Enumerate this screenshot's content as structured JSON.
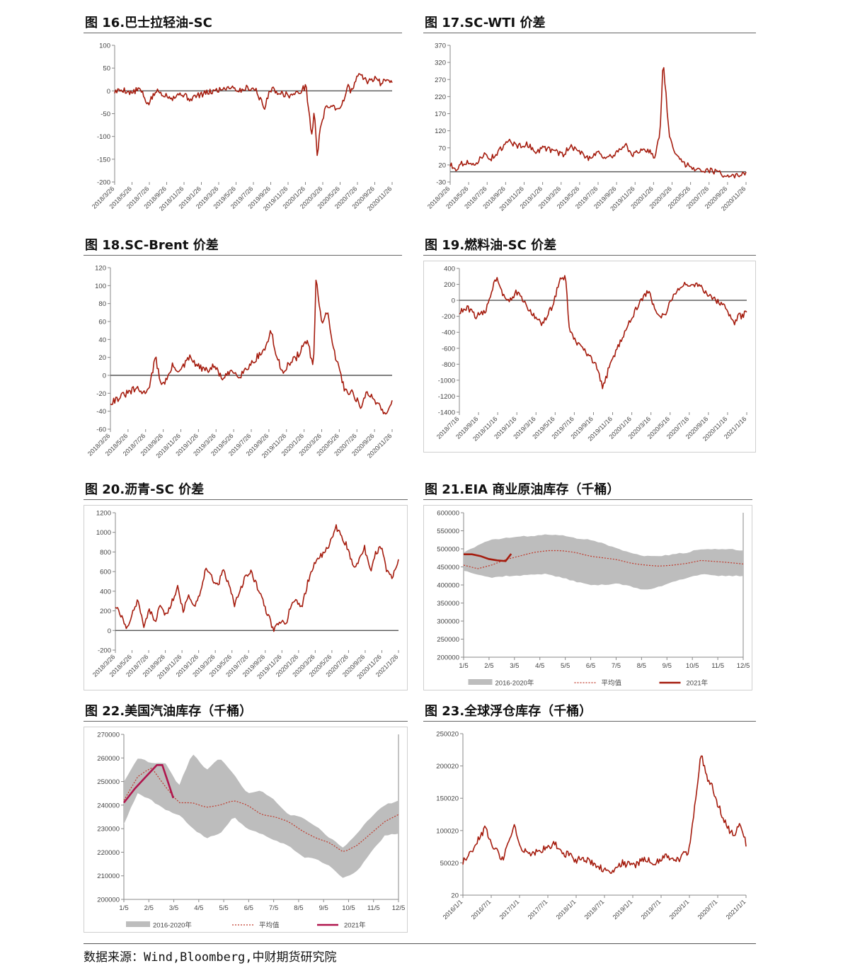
{
  "footer": {
    "source": "数据来源：Wind,Bloomberg,中财期货研究院"
  },
  "panels": [
    {
      "id": "p16",
      "title": "图 16.巴士拉轻油-SC",
      "box": [
        118,
        20,
        450,
        295
      ],
      "framed": false
    },
    {
      "id": "p17",
      "title": "图 17.SC-WTI 价差",
      "box": [
        598,
        20,
        470,
        295
      ],
      "framed": false
    },
    {
      "id": "p18",
      "title": "图 18.SC-Brent 价差",
      "box": [
        118,
        334,
        450,
        330
      ],
      "framed": false
    },
    {
      "id": "p19",
      "title": "图 19.燃料油-SC 价差",
      "box": [
        598,
        334,
        470,
        305
      ],
      "framed": true
    },
    {
      "id": "p20",
      "title": "图 20.沥青-SC 价差",
      "box": [
        118,
        679,
        458,
        296
      ],
      "framed": true
    },
    {
      "id": "p21",
      "title": "图 21.EIA 商业原油库存（千桶）",
      "box": [
        598,
        679,
        465,
        296
      ],
      "framed": true
    },
    {
      "id": "p22",
      "title": "图 22.美国汽油库存（千桶）",
      "box": [
        118,
        992,
        458,
        325
      ],
      "framed": true
    },
    {
      "id": "p23",
      "title": "图 23.全球浮仓库存（千桶）",
      "box": [
        598,
        992,
        470,
        330
      ],
      "framed": false
    }
  ],
  "chart_data": [
    {
      "panel": "p16",
      "type": "line",
      "color": "#a51c0e",
      "ylim": [
        -200,
        100
      ],
      "yticks": [
        100,
        50,
        0,
        -50,
        -100,
        -150,
        -200
      ],
      "xticks": [
        "2018/3/26",
        "2018/5/26",
        "2018/7/26",
        "2018/9/26",
        "2018/11/26",
        "2019/1/26",
        "2019/3/26",
        "2019/5/26",
        "2019/7/26",
        "2019/9/26",
        "2019/11/26",
        "2020/1/26",
        "2020/3/26",
        "2020/5/26",
        "2020/7/26",
        "2020/9/26",
        "2020/11/26"
      ],
      "x": [
        0,
        0.03,
        0.06,
        0.09,
        0.12,
        0.15,
        0.18,
        0.21,
        0.24,
        0.27,
        0.3,
        0.33,
        0.36,
        0.39,
        0.42,
        0.45,
        0.48,
        0.51,
        0.54,
        0.56,
        0.58,
        0.6,
        0.63,
        0.66,
        0.69,
        0.71,
        0.72,
        0.73,
        0.74,
        0.75,
        0.76,
        0.78,
        0.8,
        0.82,
        0.83,
        0.84,
        0.85,
        0.86,
        0.88,
        0.9,
        0.92,
        0.94,
        0.96,
        0.98,
        1.0
      ],
      "values": [
        -2,
        3,
        -5,
        5,
        -30,
        0,
        -8,
        -15,
        -5,
        -18,
        -10,
        -5,
        0,
        5,
        10,
        0,
        8,
        2,
        -40,
        5,
        0,
        -5,
        -10,
        -5,
        10,
        -100,
        -40,
        -150,
        -80,
        -60,
        -40,
        -30,
        -40,
        -30,
        -10,
        10,
        0,
        5,
        40,
        25,
        20,
        30,
        15,
        30,
        20
      ]
    },
    {
      "panel": "p17",
      "type": "line",
      "color": "#a51c0e",
      "ylim": [
        -30,
        370
      ],
      "yticks": [
        370,
        320,
        270,
        220,
        170,
        120,
        70,
        20,
        -30
      ],
      "xticks": [
        "2018/3/26",
        "2018/5/26",
        "2018/7/26",
        "2018/9/26",
        "2018/11/26",
        "2019/1/26",
        "2019/3/26",
        "2019/5/26",
        "2019/7/26",
        "2019/9/26",
        "2019/11/26",
        "2020/1/26",
        "2020/3/26",
        "2020/5/26",
        "2020/7/26",
        "2020/9/26",
        "2020/11/26"
      ],
      "x": [
        0,
        0.02,
        0.05,
        0.08,
        0.11,
        0.14,
        0.17,
        0.2,
        0.23,
        0.26,
        0.29,
        0.32,
        0.35,
        0.38,
        0.41,
        0.44,
        0.47,
        0.5,
        0.53,
        0.56,
        0.59,
        0.62,
        0.65,
        0.67,
        0.69,
        0.71,
        0.72,
        0.74,
        0.76,
        0.78,
        0.8,
        0.83,
        0.86,
        0.9,
        0.93,
        0.96,
        1.0
      ],
      "values": [
        20,
        10,
        30,
        15,
        50,
        40,
        65,
        90,
        75,
        80,
        60,
        70,
        60,
        50,
        75,
        55,
        40,
        60,
        35,
        55,
        80,
        50,
        60,
        65,
        40,
        120,
        330,
        110,
        60,
        30,
        20,
        10,
        5,
        0,
        -10,
        -15,
        -5
      ]
    },
    {
      "panel": "p18",
      "type": "line",
      "color": "#a51c0e",
      "ylim": [
        -60,
        120
      ],
      "yticks": [
        120,
        100,
        80,
        60,
        40,
        20,
        0,
        -20,
        -40,
        -60
      ],
      "xticks": [
        "2018/3/26",
        "2018/5/26",
        "2018/7/26",
        "2018/9/26",
        "2018/11/26",
        "2019/1/26",
        "2019/3/26",
        "2019/5/26",
        "2019/7/26",
        "2019/9/26",
        "2019/11/26",
        "2020/1/26",
        "2020/3/26",
        "2020/5/26",
        "2020/7/26",
        "2020/9/26",
        "2020/11/26"
      ],
      "x": [
        0,
        0.03,
        0.06,
        0.09,
        0.12,
        0.14,
        0.16,
        0.18,
        0.2,
        0.22,
        0.25,
        0.28,
        0.31,
        0.34,
        0.37,
        0.4,
        0.43,
        0.46,
        0.49,
        0.52,
        0.55,
        0.57,
        0.59,
        0.61,
        0.66,
        0.7,
        0.72,
        0.73,
        0.75,
        0.77,
        0.79,
        0.81,
        0.83,
        0.86,
        0.89,
        0.91,
        0.93,
        0.96,
        0.98,
        1.0
      ],
      "values": [
        -30,
        -25,
        -20,
        -15,
        -20,
        -10,
        20,
        -10,
        -5,
        10,
        5,
        20,
        10,
        5,
        10,
        -5,
        5,
        0,
        10,
        20,
        30,
        50,
        20,
        5,
        20,
        40,
        5,
        105,
        60,
        70,
        30,
        10,
        -15,
        -20,
        -35,
        -20,
        -25,
        -35,
        -45,
        -25
      ]
    },
    {
      "panel": "p19",
      "type": "line",
      "color": "#a51c0e",
      "ylim": [
        -1400,
        400
      ],
      "yticks": [
        400,
        200,
        0,
        -200,
        -400,
        -600,
        -800,
        -1000,
        -1200,
        -1400
      ],
      "xticks": [
        "2018/7/16",
        "2018/9/16",
        "2018/11/16",
        "2019/1/16",
        "2019/3/16",
        "2019/5/16",
        "2019/7/16",
        "2019/9/16",
        "2019/11/16",
        "2020/1/16",
        "2020/3/16",
        "2020/5/16",
        "2020/7/16",
        "2020/9/16",
        "2020/11/16",
        "2021/1/16"
      ],
      "x": [
        0,
        0.03,
        0.06,
        0.09,
        0.11,
        0.13,
        0.15,
        0.17,
        0.2,
        0.23,
        0.26,
        0.29,
        0.32,
        0.35,
        0.37,
        0.38,
        0.4,
        0.44,
        0.48,
        0.5,
        0.52,
        0.55,
        0.58,
        0.61,
        0.64,
        0.66,
        0.68,
        0.7,
        0.72,
        0.75,
        0.78,
        0.8,
        0.83,
        0.86,
        0.89,
        0.92,
        0.94,
        0.96,
        0.97,
        0.98,
        1.0
      ],
      "values": [
        -150,
        -100,
        -200,
        -150,
        100,
        300,
        100,
        0,
        100,
        -50,
        -200,
        -300,
        -100,
        250,
        300,
        -300,
        -500,
        -650,
        -850,
        -1100,
        -850,
        -600,
        -350,
        -150,
        50,
        100,
        -100,
        -200,
        -150,
        100,
        200,
        150,
        200,
        100,
        0,
        -50,
        -200,
        -300,
        -150,
        -200,
        -150
      ]
    },
    {
      "panel": "p20",
      "type": "line",
      "color": "#a51c0e",
      "ylim": [
        -200,
        1200
      ],
      "yticks": [
        1200,
        1000,
        800,
        600,
        400,
        200,
        0,
        -200
      ],
      "xticks": [
        "2018/3/26",
        "2018/5/26",
        "2018/7/26",
        "2018/9/26",
        "2018/11/26",
        "2019/1/26",
        "2019/3/26",
        "2019/5/26",
        "2019/7/26",
        "2019/9/26",
        "2019/11/26",
        "2020/1/26",
        "2020/3/26",
        "2020/5/26",
        "2020/7/26",
        "2020/9/26",
        "2020/11/26",
        "2021/1/26"
      ],
      "x": [
        0,
        0.02,
        0.04,
        0.06,
        0.08,
        0.1,
        0.12,
        0.14,
        0.16,
        0.18,
        0.2,
        0.22,
        0.24,
        0.26,
        0.28,
        0.3,
        0.32,
        0.34,
        0.36,
        0.38,
        0.4,
        0.42,
        0.44,
        0.46,
        0.48,
        0.5,
        0.52,
        0.54,
        0.56,
        0.58,
        0.6,
        0.62,
        0.64,
        0.66,
        0.68,
        0.7,
        0.72,
        0.74,
        0.76,
        0.78,
        0.8,
        0.82,
        0.84,
        0.86,
        0.88,
        0.9,
        0.92,
        0.94,
        0.96,
        0.98,
        1.0
      ],
      "values": [
        250,
        150,
        0,
        200,
        300,
        50,
        200,
        100,
        250,
        150,
        300,
        450,
        200,
        350,
        250,
        400,
        650,
        550,
        450,
        600,
        500,
        250,
        400,
        550,
        600,
        450,
        300,
        150,
        0,
        100,
        50,
        250,
        300,
        250,
        500,
        650,
        750,
        800,
        900,
        1050,
        950,
        850,
        650,
        700,
        850,
        600,
        800,
        850,
        600,
        550,
        700
      ]
    },
    {
      "panel": "p21",
      "type": "line",
      "ylim": [
        200000,
        600000
      ],
      "yticks": [
        600000,
        550000,
        500000,
        450000,
        400000,
        350000,
        300000,
        250000,
        200000
      ],
      "xticks": [
        "1/5",
        "2/5",
        "3/5",
        "4/5",
        "5/5",
        "6/5",
        "7/5",
        "8/5",
        "9/5",
        "10/5",
        "11/5",
        "12/5"
      ],
      "legend": [
        "2016-2020年",
        "平均值",
        "2021年"
      ],
      "band_color": "#bdbdbd",
      "avg_color": "#c0392b",
      "cur_color": "#a51c0e",
      "x": [
        0,
        0.05,
        0.1,
        0.15,
        0.2,
        0.25,
        0.3,
        0.35,
        0.4,
        0.45,
        0.5,
        0.55,
        0.6,
        0.65,
        0.7,
        0.75,
        0.8,
        0.85,
        0.9,
        0.95,
        1.0
      ],
      "band_max": [
        490000,
        510000,
        525000,
        530000,
        535000,
        535000,
        540000,
        538000,
        530000,
        525000,
        515000,
        500000,
        490000,
        480000,
        480000,
        485000,
        490000,
        500000,
        500000,
        500000,
        495000
      ],
      "band_min": [
        440000,
        430000,
        420000,
        425000,
        425000,
        430000,
        430000,
        420000,
        410000,
        400000,
        400000,
        405000,
        395000,
        385000,
        395000,
        410000,
        420000,
        430000,
        425000,
        425000,
        425000
      ],
      "avg": [
        455000,
        445000,
        455000,
        470000,
        480000,
        490000,
        495000,
        495000,
        490000,
        480000,
        475000,
        470000,
        460000,
        455000,
        452000,
        455000,
        460000,
        468000,
        465000,
        462000,
        458000
      ],
      "cur_x": [
        0,
        0.03,
        0.06,
        0.09,
        0.12,
        0.15,
        0.17
      ],
      "current": [
        485000,
        485000,
        480000,
        472000,
        468000,
        466000,
        486000
      ]
    },
    {
      "panel": "p22",
      "type": "line",
      "ylim": [
        200000,
        270000
      ],
      "yticks": [
        270000,
        260000,
        250000,
        240000,
        230000,
        220000,
        210000,
        200000
      ],
      "xticks": [
        "1/5",
        "2/5",
        "3/5",
        "4/5",
        "5/5",
        "6/5",
        "7/5",
        "8/5",
        "9/5",
        "10/5",
        "11/5",
        "12/5"
      ],
      "legend": [
        "2016-2020年",
        "平均值",
        "2021年"
      ],
      "band_color": "#bdbdbd",
      "avg_color": "#c0392b",
      "cur_color": "#b0154d",
      "x": [
        0,
        0.05,
        0.1,
        0.15,
        0.2,
        0.25,
        0.3,
        0.35,
        0.4,
        0.45,
        0.5,
        0.55,
        0.6,
        0.65,
        0.7,
        0.75,
        0.8,
        0.85,
        0.9,
        0.95,
        1.0
      ],
      "band_max": [
        250000,
        260000,
        258000,
        258000,
        248000,
        262000,
        255000,
        260000,
        253000,
        245000,
        246000,
        242000,
        236000,
        235000,
        231000,
        226000,
        222000,
        228000,
        235000,
        240000,
        242000
      ],
      "band_min": [
        232000,
        245000,
        242000,
        238000,
        236000,
        230000,
        226000,
        228000,
        235000,
        230000,
        228000,
        225000,
        223000,
        218000,
        217000,
        214000,
        209000,
        212000,
        220000,
        227000,
        228000
      ],
      "avg": [
        242000,
        252000,
        256000,
        248000,
        241000,
        241000,
        239000,
        240000,
        242000,
        240000,
        236000,
        235000,
        233000,
        229000,
        226000,
        224000,
        220000,
        223000,
        228000,
        233000,
        236000
      ],
      "cur_x": [
        0,
        0.04,
        0.08,
        0.12,
        0.14,
        0.16,
        0.18
      ],
      "current": [
        241000,
        247000,
        252000,
        257000,
        257000,
        250000,
        243000
      ]
    },
    {
      "panel": "p23",
      "type": "line",
      "color": "#a51c0e",
      "ylim": [
        20,
        250020
      ],
      "yticks": [
        250020,
        200020,
        150020,
        100020,
        50020,
        20
      ],
      "xticks": [
        "2016/1/1",
        "2016/7/1",
        "2017/1/1",
        "2017/7/1",
        "2018/1/1",
        "2018/7/1",
        "2019/1/1",
        "2019/7/1",
        "2020/1/1",
        "2020/7/1",
        "2021/1/1"
      ],
      "x": [
        0,
        0.04,
        0.08,
        0.1,
        0.14,
        0.18,
        0.2,
        0.24,
        0.28,
        0.32,
        0.36,
        0.4,
        0.44,
        0.48,
        0.52,
        0.56,
        0.6,
        0.64,
        0.68,
        0.72,
        0.76,
        0.8,
        0.82,
        0.84,
        0.86,
        0.88,
        0.9,
        0.92,
        0.94,
        0.96,
        0.98,
        1.0
      ],
      "values": [
        50000,
        75000,
        105000,
        80000,
        55000,
        110000,
        75000,
        65000,
        70000,
        80000,
        65000,
        55000,
        55000,
        45000,
        35000,
        50000,
        45000,
        55000,
        50000,
        60000,
        55000,
        70000,
        140000,
        220000,
        185000,
        170000,
        140000,
        120000,
        100000,
        95000,
        110000,
        80000
      ]
    }
  ]
}
